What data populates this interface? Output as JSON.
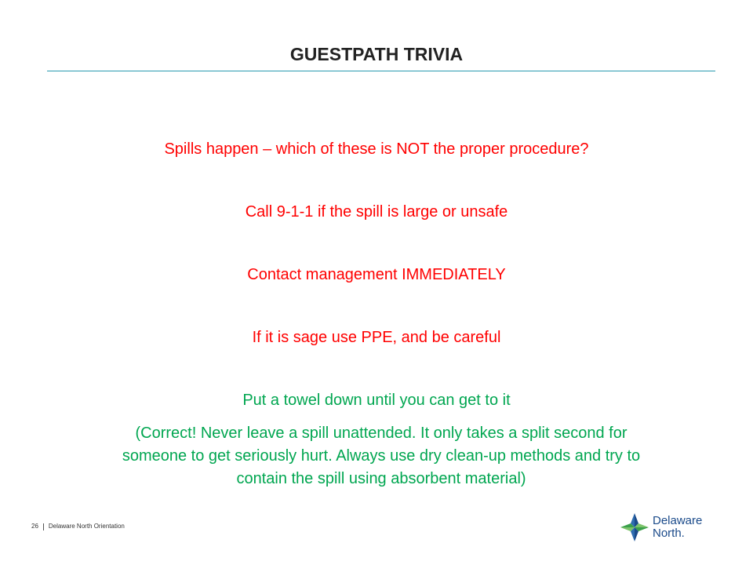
{
  "slide": {
    "title": "GUESTPATH TRIVIA",
    "question": "Spills happen – which of these is NOT the proper procedure?",
    "options": [
      "Call 9-1-1 if the spill is large or unsafe",
      "Contact management IMMEDIATELY",
      "If it is sage use PPE, and be careful",
      "Put a towel down until you can get to it"
    ],
    "explanation_lines": [
      "(Correct!  Never leave a spill unattended.  It only takes a split second for",
      "someone to get seriously hurt.  Always use dry clean-up methods and try to",
      "contain the spill using absorbent material)"
    ]
  },
  "footer": {
    "page_number": "26",
    "text": "Delaware North Orientation"
  },
  "logo": {
    "line1": "Delaware",
    "line2": "North."
  },
  "colors": {
    "title_rule": "#2a9ab0",
    "wrong_answer": "#ff0000",
    "correct_answer": "#00a650",
    "brand_blue": "#1a4a8a",
    "brand_green": "#3aa04a"
  },
  "icons": {
    "logo_mark": "delaware-north-star-icon"
  }
}
